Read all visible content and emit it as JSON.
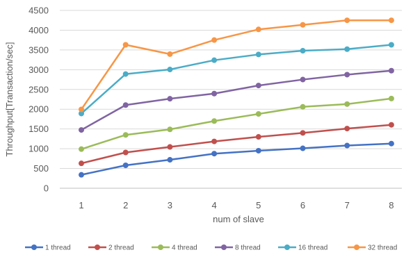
{
  "chart_data": {
    "type": "line",
    "title": "",
    "xlabel": "num of slave",
    "ylabel": "Throughput[Transaction/sec]",
    "x": [
      "1",
      "2",
      "3",
      "4",
      "5",
      "6",
      "7",
      "8"
    ],
    "ylim": [
      0,
      4500
    ],
    "yticks": [
      "0",
      "500",
      "1000",
      "1500",
      "2000",
      "2500",
      "3000",
      "3500",
      "4000",
      "4500"
    ],
    "grid": true,
    "legend": "bottom",
    "series": [
      {
        "name": "1 thread",
        "color": "#4472C4",
        "values": [
          340,
          580,
          720,
          875,
          950,
          1010,
          1080,
          1130
        ]
      },
      {
        "name": "2 thread",
        "color": "#C0504D",
        "values": [
          630,
          905,
          1045,
          1185,
          1300,
          1400,
          1510,
          1605
        ]
      },
      {
        "name": "4 thread",
        "color": "#9BBB59",
        "values": [
          990,
          1350,
          1490,
          1700,
          1880,
          2060,
          2130,
          2270
        ]
      },
      {
        "name": "8 thread",
        "color": "#8064A2",
        "values": [
          1475,
          2105,
          2265,
          2395,
          2600,
          2750,
          2875,
          2975
        ]
      },
      {
        "name": "16 thread",
        "color": "#4BACC6",
        "values": [
          1890,
          2890,
          3005,
          3240,
          3385,
          3480,
          3520,
          3630
        ]
      },
      {
        "name": "32 thread",
        "color": "#F79646",
        "values": [
          1995,
          3630,
          3395,
          3750,
          4020,
          4135,
          4250,
          4250
        ]
      }
    ]
  }
}
